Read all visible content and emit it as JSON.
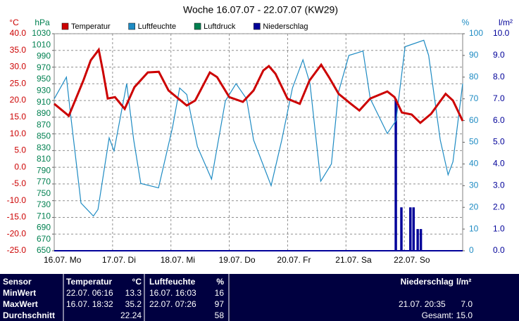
{
  "chart_data": {
    "type": "line",
    "title": "Woche 16.07.07 - 22.07.07 (KW29)",
    "xlim": [
      0,
      168
    ],
    "xticks": [
      {
        "value": 0,
        "label": "16.07. Mo"
      },
      {
        "value": 24,
        "label": "17.07. Di"
      },
      {
        "value": 48,
        "label": "18.07. Mi"
      },
      {
        "value": 72,
        "label": "19.07. Do"
      },
      {
        "value": 96,
        "label": "20.07. Fr"
      },
      {
        "value": 120,
        "label": "21.07. Sa"
      },
      {
        "value": 144,
        "label": "22.07. So"
      }
    ],
    "ylabel": "°C",
    "ylim": [
      -25,
      40
    ],
    "yticks": [
      {
        "value": 40,
        "label": "40.0"
      },
      {
        "value": 35,
        "label": "35.0"
      },
      {
        "value": 30,
        "label": "30.0"
      },
      {
        "value": 25,
        "label": "25.0"
      },
      {
        "value": 20,
        "label": "20.0"
      },
      {
        "value": 15,
        "label": "15.0"
      },
      {
        "value": 10,
        "label": "10.0"
      },
      {
        "value": 5,
        "label": "5.0"
      },
      {
        "value": 0,
        "label": "0.0"
      },
      {
        "value": -5,
        "label": "-5.0"
      },
      {
        "value": -10,
        "label": "-10.0"
      },
      {
        "value": -15,
        "label": "-15.0"
      },
      {
        "value": -20,
        "label": "-20.0"
      },
      {
        "value": -25,
        "label": "-25.0"
      }
    ],
    "y3label": "hPa",
    "y3lim": [
      650,
      1030
    ],
    "y3ticks": [
      1030,
      1010,
      990,
      970,
      950,
      930,
      910,
      890,
      870,
      850,
      830,
      810,
      790,
      770,
      750,
      730,
      710,
      690,
      670,
      650
    ],
    "y2label": "%",
    "y2lim": [
      0,
      100
    ],
    "y2ticks": [
      100,
      90,
      80,
      70,
      60,
      50,
      40,
      30,
      20,
      10,
      0
    ],
    "y4label": "l/m²",
    "y4lim": [
      0,
      10
    ],
    "y4ticks": [
      {
        "value": 10,
        "label": "10.0"
      },
      {
        "value": 9,
        "label": "9.0"
      },
      {
        "value": 8,
        "label": "8.0"
      },
      {
        "value": 7,
        "label": "7.0"
      },
      {
        "value": 6,
        "label": "6.0"
      },
      {
        "value": 5,
        "label": "5.0"
      },
      {
        "value": 4,
        "label": "4.0"
      },
      {
        "value": 3,
        "label": "3.0"
      },
      {
        "value": 2,
        "label": "2.0"
      },
      {
        "value": 1,
        "label": "1.0"
      },
      {
        "value": 0,
        "label": "0.0"
      }
    ],
    "grid": true,
    "series": [
      {
        "name": "Temperatur",
        "color": "#cc0000",
        "axis": "y",
        "kind": "line",
        "x": [
          0,
          6,
          12,
          15,
          18.3,
          20,
          22,
          25,
          29,
          33,
          38.5,
          43,
          47,
          54.5,
          58,
          64,
          67,
          72,
          77.6,
          82,
          86,
          88.3,
          91,
          96,
          101,
          105,
          109.8,
          113,
          117,
          122,
          125.5,
          130,
          137,
          140,
          143,
          147,
          150.6,
          155,
          158,
          161,
          164,
          168
        ],
        "values": [
          19,
          15.4,
          26,
          32,
          35.2,
          29,
          20.6,
          21,
          17.5,
          24,
          28.4,
          28.6,
          23,
          18.5,
          20,
          28.4,
          27,
          21,
          19.6,
          23,
          29,
          30.3,
          28,
          20.5,
          19,
          26,
          30.7,
          27,
          22,
          19,
          17,
          20.6,
          22.7,
          21,
          16.4,
          15.8,
          13.3,
          16,
          19,
          22,
          20,
          13.9
        ]
      },
      {
        "name": "Luftfeuchte",
        "color": "#1e8bc3",
        "axis": "y2",
        "kind": "line",
        "x": [
          0,
          5,
          6.6,
          11,
          16.1,
          18,
          22.6,
          24.6,
          29.8,
          32.7,
          35.6,
          42.9,
          48.7,
          51.6,
          54.5,
          58.9,
          64.7,
          70.4,
          74.8,
          79.1,
          82,
          89.2,
          93.6,
          98,
          102.3,
          105.2,
          109.6,
          114,
          116.9,
          121.2,
          127,
          130,
          137,
          140.6,
          144.3,
          152,
          154,
          158.8,
          162,
          164,
          168
        ],
        "values": [
          70,
          80,
          64,
          22,
          16,
          19,
          52,
          46,
          77,
          51,
          31,
          29,
          57,
          75,
          72,
          48,
          33,
          69,
          77,
          70,
          51,
          30,
          51,
          75,
          88,
          77,
          32,
          40,
          73,
          90,
          92,
          70,
          54,
          60,
          94,
          97,
          90,
          51,
          35,
          41,
          77
        ]
      },
      {
        "name": "Luftdruck",
        "color": "#008050",
        "axis": "y3",
        "kind": "line",
        "x": [],
        "values": []
      },
      {
        "name": "Niederschlag",
        "color": "#000099",
        "axis": "y4",
        "kind": "bar",
        "x": [
          140.5,
          142.8,
          146.5,
          147.8,
          149.5,
          150.8
        ],
        "values": [
          7.0,
          2.0,
          2.0,
          2.0,
          1.0,
          1.0
        ]
      }
    ]
  },
  "table": {
    "header": {
      "label": "Sensor",
      "temp_time": "Temperatur",
      "temp": "°C",
      "hum_time": "Luftfeuchte",
      "hum": "%",
      "rain_label": "Niederschlag",
      "rain": "l/m²"
    },
    "rows": [
      {
        "label": "MinWert",
        "temp_time": "22.07.  06:16",
        "temp": "13.3",
        "hum_time": "16.07.  16:03",
        "hum": "16"
      },
      {
        "label": "MaxWert",
        "temp_time": "16.07.  18:32",
        "temp": "35.2",
        "hum_time": "22.07.  07:26",
        "hum": "97",
        "rain_time": "21.07.  20:35",
        "rain": "7.0"
      },
      {
        "label": "Durchschnitt",
        "temp": "22.24",
        "hum": "58",
        "rain_label": "Gesamt:",
        "rain": "15.0"
      }
    ]
  }
}
